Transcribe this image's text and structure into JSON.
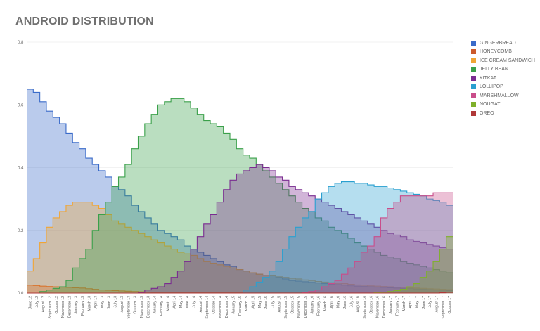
{
  "chart_data": {
    "type": "area",
    "title": "ANDROID DISTRIBUTION",
    "xlabel": "",
    "ylabel": "",
    "ylim": [
      0,
      0.8
    ],
    "yticks": [
      "0.0",
      "0.2",
      "0.4",
      "0.6",
      "0.8"
    ],
    "grid": true,
    "legend_position": "right",
    "x": [
      "June 12",
      "July 12",
      "August 12",
      "September 12",
      "October 12",
      "November 12",
      "December 12",
      "January 13",
      "February 13",
      "March 13",
      "April 13",
      "May 13",
      "June 13",
      "July 13",
      "August 13",
      "September 13",
      "October 13",
      "November 13",
      "December 13",
      "January 14",
      "February 14",
      "March 14",
      "April 14",
      "May 14",
      "June 14",
      "July 14",
      "August 14",
      "September 14",
      "October 14",
      "November 14",
      "December 14",
      "January 15",
      "February 15",
      "March 15",
      "April 15",
      "May 15",
      "June 15",
      "July 15",
      "August 15",
      "September 15",
      "October 15",
      "November 15",
      "December 15",
      "January 16",
      "February 16",
      "March 16",
      "April 16",
      "May 16",
      "June 16",
      "July 16",
      "August 16",
      "September 16",
      "October 16",
      "November 16",
      "December 16",
      "January 17",
      "February 17",
      "March 17",
      "April 17",
      "May 17",
      "June 17",
      "July 17",
      "August 17",
      "September 17",
      "October 17"
    ],
    "series": [
      {
        "name": "GINGERBREAD",
        "color": "#3a6bc9",
        "values": [
          0.65,
          0.64,
          0.61,
          0.58,
          0.56,
          0.54,
          0.51,
          0.48,
          0.46,
          0.43,
          0.41,
          0.39,
          0.37,
          0.34,
          0.33,
          0.31,
          0.28,
          0.26,
          0.24,
          0.22,
          0.2,
          0.19,
          0.18,
          0.17,
          0.15,
          0.14,
          0.13,
          0.12,
          0.11,
          0.1,
          0.09,
          0.085,
          0.075,
          0.07,
          0.065,
          0.06,
          0.057,
          0.055,
          0.05,
          0.045,
          0.04,
          0.038,
          0.036,
          0.034,
          0.032,
          0.03,
          0.028,
          0.027,
          0.025,
          0.023,
          0.022,
          0.021,
          0.02,
          0.019,
          0.018,
          0.017,
          0.016,
          0.015,
          0.014,
          0.013,
          0.012,
          0.011,
          0.01,
          0.009,
          0.008
        ]
      },
      {
        "name": "HONEYCOMB",
        "color": "#cc5a2c",
        "values": [
          0.025,
          0.024,
          0.022,
          0.021,
          0.02,
          0.019,
          0.018,
          0.017,
          0.016,
          0.014,
          0.012,
          0.01,
          0.009,
          0.008,
          0.007,
          0.006,
          0.005,
          0.004,
          0.003,
          0.002,
          0.002,
          0.001,
          0.001,
          0.001,
          0.001,
          0.001,
          0.001,
          0.001,
          0.001,
          0.001,
          0.001,
          0.001,
          0.001,
          0.001,
          0.001,
          0.001,
          0.001,
          0.001,
          0.001,
          0.001,
          0.001,
          0.001,
          0.001,
          0.001,
          0.001,
          0.001,
          0.001,
          0.001,
          0.001,
          0.001,
          0.001,
          0.001,
          0.001,
          0.001,
          0.001,
          0.001,
          0.001,
          0.001,
          0.001,
          0.001,
          0.001,
          0.001,
          0.001,
          0.001,
          0.001
        ]
      },
      {
        "name": "ICE CREAM SANDWICH",
        "color": "#f0a535",
        "values": [
          0.07,
          0.11,
          0.16,
          0.21,
          0.24,
          0.26,
          0.28,
          0.29,
          0.29,
          0.29,
          0.28,
          0.27,
          0.25,
          0.23,
          0.22,
          0.21,
          0.2,
          0.19,
          0.18,
          0.17,
          0.16,
          0.15,
          0.14,
          0.13,
          0.125,
          0.12,
          0.11,
          0.1,
          0.095,
          0.09,
          0.085,
          0.08,
          0.075,
          0.07,
          0.065,
          0.06,
          0.057,
          0.055,
          0.052,
          0.05,
          0.047,
          0.045,
          0.042,
          0.04,
          0.037,
          0.035,
          0.033,
          0.031,
          0.03,
          0.028,
          0.026,
          0.025,
          0.023,
          0.022,
          0.021,
          0.02,
          0.019,
          0.018,
          0.017,
          0.016,
          0.015,
          0.014,
          0.013,
          0.012,
          0.011
        ]
      },
      {
        "name": "JELLY BEAN",
        "color": "#3aa04a",
        "values": [
          0.0,
          0.0,
          0.005,
          0.01,
          0.015,
          0.02,
          0.04,
          0.08,
          0.11,
          0.14,
          0.2,
          0.25,
          0.29,
          0.34,
          0.37,
          0.41,
          0.46,
          0.5,
          0.54,
          0.57,
          0.6,
          0.61,
          0.62,
          0.62,
          0.61,
          0.59,
          0.57,
          0.55,
          0.54,
          0.53,
          0.51,
          0.49,
          0.46,
          0.44,
          0.43,
          0.41,
          0.39,
          0.37,
          0.35,
          0.33,
          0.31,
          0.29,
          0.27,
          0.26,
          0.24,
          0.23,
          0.21,
          0.2,
          0.19,
          0.175,
          0.16,
          0.15,
          0.14,
          0.13,
          0.12,
          0.115,
          0.11,
          0.1,
          0.095,
          0.09,
          0.085,
          0.08,
          0.075,
          0.07,
          0.065
        ]
      },
      {
        "name": "KITKAT",
        "color": "#7a2c90",
        "values": [
          0.0,
          0.0,
          0.0,
          0.0,
          0.0,
          0.0,
          0.0,
          0.0,
          0.0,
          0.0,
          0.0,
          0.0,
          0.0,
          0.0,
          0.0,
          0.0,
          0.0,
          0.001,
          0.01,
          0.015,
          0.02,
          0.03,
          0.05,
          0.07,
          0.1,
          0.14,
          0.18,
          0.22,
          0.25,
          0.29,
          0.33,
          0.36,
          0.38,
          0.39,
          0.4,
          0.41,
          0.4,
          0.39,
          0.37,
          0.36,
          0.34,
          0.33,
          0.32,
          0.31,
          0.3,
          0.29,
          0.28,
          0.27,
          0.26,
          0.25,
          0.24,
          0.23,
          0.22,
          0.21,
          0.2,
          0.19,
          0.185,
          0.18,
          0.17,
          0.165,
          0.16,
          0.155,
          0.15,
          0.145,
          0.14
        ]
      },
      {
        "name": "LOLLIPOP",
        "color": "#2aa0d0",
        "values": [
          0.0,
          0.0,
          0.0,
          0.0,
          0.0,
          0.0,
          0.0,
          0.0,
          0.0,
          0.0,
          0.0,
          0.0,
          0.0,
          0.0,
          0.0,
          0.0,
          0.0,
          0.0,
          0.0,
          0.0,
          0.0,
          0.0,
          0.0,
          0.0,
          0.0,
          0.0,
          0.0,
          0.0,
          0.0,
          0.0,
          0.0,
          0.0,
          0.0,
          0.01,
          0.02,
          0.035,
          0.05,
          0.07,
          0.1,
          0.14,
          0.18,
          0.21,
          0.24,
          0.26,
          0.3,
          0.32,
          0.34,
          0.35,
          0.355,
          0.355,
          0.35,
          0.35,
          0.345,
          0.34,
          0.34,
          0.335,
          0.33,
          0.325,
          0.32,
          0.315,
          0.31,
          0.3,
          0.295,
          0.29,
          0.28
        ]
      },
      {
        "name": "MARSHMALLOW",
        "color": "#c94d8a",
        "values": [
          0.0,
          0.0,
          0.0,
          0.0,
          0.0,
          0.0,
          0.0,
          0.0,
          0.0,
          0.0,
          0.0,
          0.0,
          0.0,
          0.0,
          0.0,
          0.0,
          0.0,
          0.0,
          0.0,
          0.0,
          0.0,
          0.0,
          0.0,
          0.0,
          0.0,
          0.0,
          0.0,
          0.0,
          0.0,
          0.0,
          0.0,
          0.0,
          0.0,
          0.0,
          0.0,
          0.0,
          0.0,
          0.0,
          0.0,
          0.0,
          0.0,
          0.0,
          0.001,
          0.005,
          0.01,
          0.02,
          0.03,
          0.04,
          0.06,
          0.08,
          0.1,
          0.13,
          0.15,
          0.18,
          0.24,
          0.27,
          0.29,
          0.31,
          0.31,
          0.31,
          0.31,
          0.31,
          0.32,
          0.32,
          0.32
        ]
      },
      {
        "name": "NOUGAT",
        "color": "#7fb02a",
        "values": [
          0.0,
          0.0,
          0.0,
          0.0,
          0.0,
          0.0,
          0.0,
          0.0,
          0.0,
          0.0,
          0.0,
          0.0,
          0.0,
          0.0,
          0.0,
          0.0,
          0.0,
          0.0,
          0.0,
          0.0,
          0.0,
          0.0,
          0.0,
          0.0,
          0.0,
          0.0,
          0.0,
          0.0,
          0.0,
          0.0,
          0.0,
          0.0,
          0.0,
          0.0,
          0.0,
          0.0,
          0.0,
          0.0,
          0.0,
          0.0,
          0.0,
          0.0,
          0.0,
          0.0,
          0.0,
          0.0,
          0.0,
          0.0,
          0.0,
          0.0,
          0.0,
          0.0,
          0.0,
          0.001,
          0.003,
          0.005,
          0.008,
          0.012,
          0.02,
          0.03,
          0.05,
          0.07,
          0.1,
          0.14,
          0.18
        ]
      },
      {
        "name": "OREO",
        "color": "#b03838",
        "values": [
          0.0,
          0.0,
          0.0,
          0.0,
          0.0,
          0.0,
          0.0,
          0.0,
          0.0,
          0.0,
          0.0,
          0.0,
          0.0,
          0.0,
          0.0,
          0.0,
          0.0,
          0.0,
          0.0,
          0.0,
          0.0,
          0.0,
          0.0,
          0.0,
          0.0,
          0.0,
          0.0,
          0.0,
          0.0,
          0.0,
          0.0,
          0.0,
          0.0,
          0.0,
          0.0,
          0.0,
          0.0,
          0.0,
          0.0,
          0.0,
          0.0,
          0.0,
          0.0,
          0.0,
          0.0,
          0.0,
          0.0,
          0.0,
          0.0,
          0.0,
          0.0,
          0.0,
          0.0,
          0.0,
          0.0,
          0.0,
          0.0,
          0.0,
          0.0,
          0.0,
          0.0,
          0.0,
          0.0,
          0.001,
          0.003
        ]
      }
    ]
  }
}
